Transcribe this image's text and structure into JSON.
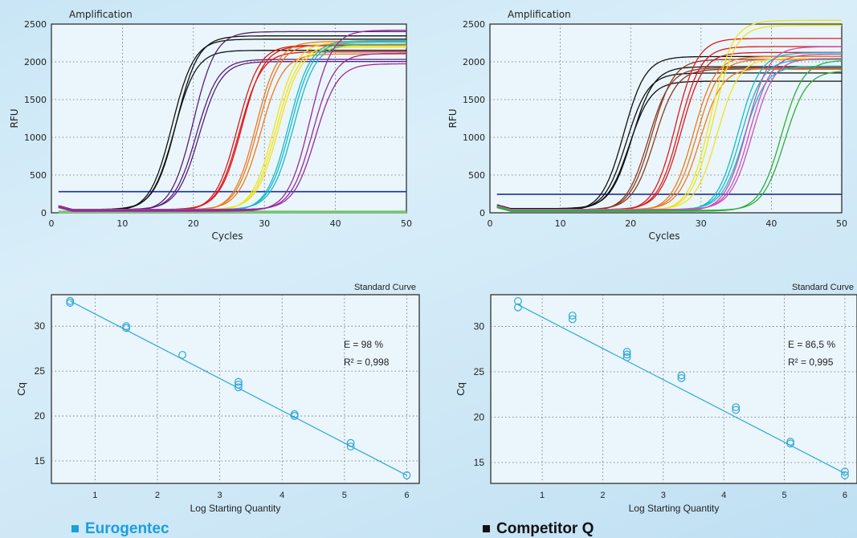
{
  "panels": [
    {
      "caption": "Eurogentec",
      "caption_color": "#1a9ee0",
      "amp": {
        "title": "Amplification",
        "xlabel": "Cycles",
        "ylabel": "RFU",
        "xlim": [
          0,
          50
        ],
        "ylim": [
          0,
          2500
        ],
        "xticks": [
          0,
          10,
          20,
          30,
          40,
          50
        ],
        "yticks": [
          0,
          500,
          1000,
          1500,
          2000,
          2500
        ],
        "threshold": 280,
        "groups": [
          {
            "color": "#111111",
            "curves": [
              [
                17,
                2280
              ],
              [
                17.3,
                2120
              ],
              [
                17.6,
                2300
              ]
            ]
          },
          {
            "color": "#5a1e78",
            "curves": [
              [
                20,
                2380
              ],
              [
                20.4,
                2000
              ],
              [
                20.8,
                1960
              ]
            ]
          },
          {
            "color": "#dd1a1a",
            "curves": [
              [
                26.2,
                2200
              ],
              [
                26.5,
                2100
              ],
              [
                26.8,
                2170
              ]
            ]
          },
          {
            "color": "#ee7a1c",
            "curves": [
              [
                28.8,
                2250
              ],
              [
                29.1,
                2200
              ],
              [
                29.5,
                2060
              ]
            ]
          },
          {
            "color": "#f2e21a",
            "curves": [
              [
                31.4,
                2240
              ],
              [
                31.7,
                2180
              ],
              [
                32,
                2150
              ]
            ]
          },
          {
            "color": "#18b9c9",
            "curves": [
              [
                33.4,
                2260
              ],
              [
                33.7,
                2230
              ],
              [
                34.1,
                2190
              ]
            ]
          },
          {
            "color": "#992a99",
            "curves": [
              [
                36.4,
                2400
              ],
              [
                36.8,
                2080
              ],
              [
                37.2,
                1930
              ]
            ]
          }
        ],
        "baselines": [
          {
            "color": "#2fae3a",
            "y": 15
          },
          {
            "color": "#7ec96f",
            "y": 8
          }
        ]
      },
      "std": {
        "title": "Standard Curve",
        "xlabel": "Log Starting Quantity",
        "ylabel": "Cq",
        "xlim": [
          0.3,
          6.2
        ],
        "ylim": [
          12.5,
          33.5
        ],
        "xticks": [
          1,
          2,
          3,
          4,
          5,
          6
        ],
        "yticks": [
          15,
          20,
          25,
          30
        ],
        "line": [
          [
            0.6,
            32.8
          ],
          [
            6,
            13.4
          ]
        ],
        "points": [
          [
            0.6,
            32.6
          ],
          [
            0.6,
            32.8
          ],
          [
            1.5,
            29.8
          ],
          [
            1.5,
            30.0
          ],
          [
            2.4,
            26.8
          ],
          [
            3.3,
            23.2
          ],
          [
            3.3,
            23.5
          ],
          [
            3.3,
            23.8
          ],
          [
            4.2,
            20.0
          ],
          [
            4.2,
            20.2
          ],
          [
            5.1,
            16.6
          ],
          [
            5.1,
            17.0
          ],
          [
            6,
            13.4
          ]
        ],
        "annot1": "E = 98 %",
        "annot2": "R² = 0,998"
      }
    },
    {
      "caption": "Competitor Q",
      "caption_color": "#111111",
      "amp": {
        "title": "Amplification",
        "xlabel": "Cycles",
        "ylabel": "RFU",
        "xlim": [
          0,
          50
        ],
        "ylim": [
          0,
          2500
        ],
        "xticks": [
          0,
          10,
          20,
          30,
          40,
          50
        ],
        "yticks": [
          0,
          500,
          1000,
          1500,
          2000,
          2500
        ],
        "threshold": 245,
        "groups": [
          {
            "color": "#111111",
            "curves": [
              [
                19,
                2050
              ],
              [
                19.4,
                1820
              ],
              [
                19.8,
                1700
              ],
              [
                20.2,
                1880
              ]
            ]
          },
          {
            "color": "#8b3a1e",
            "curves": [
              [
                22.5,
                1900
              ],
              [
                23,
                2000
              ],
              [
                23.4,
                1860
              ]
            ]
          },
          {
            "color": "#dd1a1a",
            "curves": [
              [
                26.4,
                2290
              ],
              [
                26.9,
                2170
              ],
              [
                27.2,
                2080
              ]
            ]
          },
          {
            "color": "#ee7a1c",
            "curves": [
              [
                28.9,
                2050
              ],
              [
                29.4,
                2000
              ],
              [
                29.9,
                1870
              ]
            ]
          },
          {
            "color": "#f2e21a",
            "curves": [
              [
                31.4,
                2530
              ],
              [
                31.8,
                2450
              ],
              [
                32.3,
                2000
              ]
            ]
          },
          {
            "color": "#18b9c9",
            "curves": [
              [
                35.3,
                2100
              ],
              [
                35.7,
                2000
              ],
              [
                36.1,
                1900
              ]
            ]
          },
          {
            "color": "#cc4fb8",
            "curves": [
              [
                36.5,
                2180
              ],
              [
                36.9,
                2070
              ],
              [
                37.3,
                2000
              ]
            ]
          },
          {
            "color": "#2fae3a",
            "curves": [
              [
                41.4,
                2000
              ],
              [
                41.9,
                1850
              ]
            ]
          }
        ],
        "baselines": []
      },
      "std": {
        "title": "Standard Curve",
        "xlabel": "Log Starting Quantity",
        "ylabel": "Cq",
        "xlim": [
          0.15,
          6.2
        ],
        "ylim": [
          12.7,
          33.5
        ],
        "xticks": [
          1,
          2,
          3,
          4,
          5,
          6
        ],
        "yticks": [
          15,
          20,
          25,
          30
        ],
        "line": [
          [
            0.6,
            32.4
          ],
          [
            6,
            13.8
          ]
        ],
        "points": [
          [
            0.6,
            32.1
          ],
          [
            0.6,
            32.8
          ],
          [
            1.5,
            30.8
          ],
          [
            1.5,
            31.2
          ],
          [
            2.4,
            26.6
          ],
          [
            2.4,
            26.9
          ],
          [
            2.4,
            27.2
          ],
          [
            3.3,
            24.3
          ],
          [
            3.3,
            24.6
          ],
          [
            4.2,
            20.8
          ],
          [
            4.2,
            21.1
          ],
          [
            5.1,
            17.1
          ],
          [
            5.1,
            17.3
          ],
          [
            6,
            13.6
          ],
          [
            6,
            14.0
          ]
        ],
        "annot1": "E = 86,5 %",
        "annot2": "R² = 0,995"
      }
    }
  ]
}
